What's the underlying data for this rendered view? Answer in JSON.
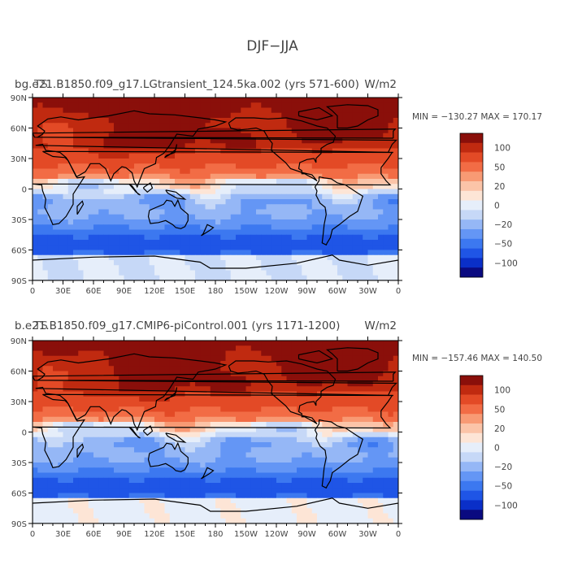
{
  "main_title": "DJF−JJA",
  "panels": [
    {
      "title_overlap_a": "TS",
      "title_left": "bg.e21.B1850.f09_g17.LGtransient_124.5ka.002 (yrs 571-600)",
      "title_right": "W/m2",
      "stats": "MIN = −130.27  MAX = 170.17",
      "min": -130.27,
      "max": 170.17
    },
    {
      "title_overlap_a": "TS",
      "title_left": "b.e21.B1850.f09_g17.CMIP6-piControl.001 (yrs 1171-1200)",
      "title_right": "W/m2",
      "stats": "MIN = −157.46  MAX = 140.50",
      "min": -157.46,
      "max": 140.5
    }
  ],
  "chart_data": {
    "type": "heatmap",
    "projection": "cylindrical equidistant, centered on 180",
    "x_ticks": [
      "0",
      "30E",
      "60E",
      "90E",
      "120E",
      "150E",
      "180",
      "150W",
      "120W",
      "90W",
      "60W",
      "30W",
      "0"
    ],
    "y_ticks": [
      "90N",
      "60N",
      "30N",
      "0",
      "30S",
      "60S",
      "90S"
    ],
    "colorbar": {
      "levels": [
        -125,
        -100,
        -75,
        -50,
        -35,
        -20,
        -10,
        0,
        10,
        20,
        35,
        50,
        75,
        100,
        125
      ],
      "tick_labels": [
        "100",
        "50",
        "20",
        "0",
        "−20",
        "−50",
        "−100"
      ],
      "colors": [
        "#0a0a80",
        "#0a2fc8",
        "#1f55e6",
        "#3c78f0",
        "#6496f5",
        "#95b7f6",
        "#c6d8f7",
        "#e6eefa",
        "#fde5d6",
        "#fbc4a8",
        "#f89a74",
        "#f26c45",
        "#e34a26",
        "#c02a10",
        "#8a0f0a"
      ]
    },
    "pattern": "Positive (red) over Northern Hemisphere mid-to-high latitudes, strongest over Eurasia, North Pacific and Greenland; negative (blue) over Southern Hemisphere mid latitudes and the equatorial band; light blue over Antarctica."
  }
}
